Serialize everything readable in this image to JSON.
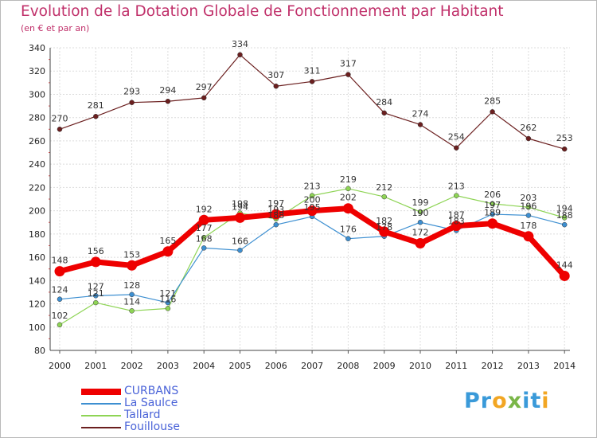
{
  "title": "Evolution de la Dotation Globale de Fonctionnement par Habitant",
  "subtitle": "(en € et par an)",
  "logo": {
    "text": "Proxiti",
    "letters": [
      "P",
      "r",
      "o",
      "x",
      "i",
      "t",
      "i"
    ],
    "colors": [
      "#3a9ad9",
      "#3a9ad9",
      "#f2a623",
      "#7ab648",
      "#3a9ad9",
      "#3a9ad9",
      "#f2a623"
    ]
  },
  "chart_data": {
    "type": "line",
    "title": "Evolution de la Dotation Globale de Fonctionnement par Habitant",
    "xlabel": "",
    "ylabel": "(en € et par an)",
    "ylim": [
      80,
      340
    ],
    "yticks": [
      80,
      100,
      120,
      140,
      160,
      180,
      200,
      220,
      240,
      260,
      280,
      300,
      320,
      340
    ],
    "grid": true,
    "categories": [
      "2000",
      "2001",
      "2002",
      "2003",
      "2004",
      "2005",
      "2006",
      "2007",
      "2008",
      "2009",
      "2010",
      "2011",
      "2012",
      "2013",
      "2014"
    ],
    "series": [
      {
        "key": "curbans",
        "name": "CURBANS",
        "color": "#ee0000",
        "values": [
          148,
          156,
          153,
          165,
          192,
          194,
          197,
          200,
          202,
          182,
          172,
          187,
          189,
          178,
          144
        ],
        "labels": [
          "148",
          "156",
          "153",
          "165",
          "192",
          "194",
          "197",
          "200",
          "202",
          "182",
          "172",
          "187",
          "189",
          "178",
          "144"
        ]
      },
      {
        "key": "lasaulce",
        "name": "La Saulce",
        "color": "#3d8fd1",
        "values": [
          124,
          127,
          128,
          121,
          168,
          166,
          188,
          195,
          176,
          178,
          190,
          183,
          197,
          196,
          188
        ],
        "labels": [
          "124",
          "127",
          "128",
          "121",
          "168",
          "166",
          "188",
          "195",
          "176",
          "178",
          "190",
          "183",
          "197",
          "196",
          "188"
        ]
      },
      {
        "key": "tallard",
        "name": "Tallard",
        "color": "#8ed455",
        "values": [
          102,
          121,
          114,
          116,
          177,
          198,
          193,
          213,
          219,
          212,
          199,
          213,
          206,
          203,
          194
        ],
        "labels": [
          "102",
          "121",
          "114",
          "116",
          "177",
          "198",
          "193",
          "213",
          "219",
          "212",
          "199",
          "213",
          "206",
          "203",
          "194"
        ]
      },
      {
        "key": "fouillouse",
        "name": "Fouillouse",
        "color": "#6b1f1f",
        "values": [
          270,
          281,
          293,
          294,
          297,
          334,
          307,
          311,
          317,
          284,
          274,
          254,
          285,
          262,
          253
        ],
        "labels": [
          "270",
          "281",
          "293",
          "294",
          "297",
          "334",
          "307",
          "311",
          "317",
          "284",
          "274",
          "254",
          "285",
          "262",
          "253"
        ]
      }
    ],
    "legend": "bottom-left"
  }
}
